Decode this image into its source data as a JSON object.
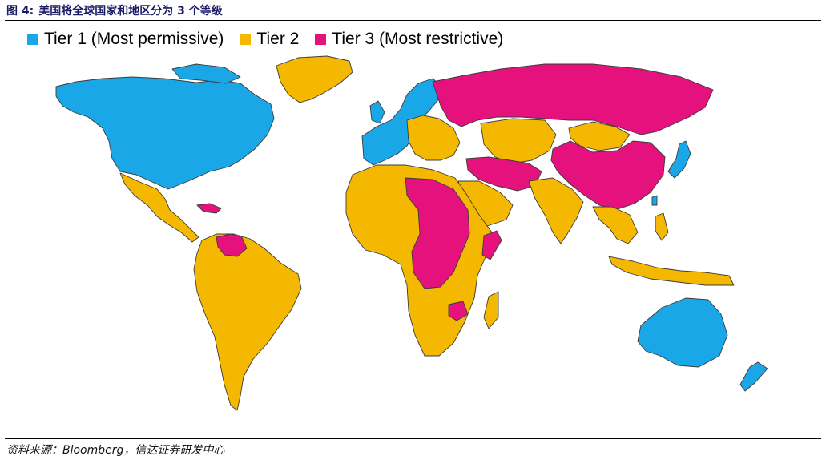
{
  "figure": {
    "number": "图 4:",
    "title": "美国将全球国家和地区分为 3 个等级"
  },
  "legend": [
    {
      "label": "Tier 1 (Most permissive)",
      "color": "#1aa7e8"
    },
    {
      "label": "Tier 2",
      "color": "#f5b800"
    },
    {
      "label": "Tier 3 (Most restrictive)",
      "color": "#e5127d"
    }
  ],
  "colors": {
    "tier1": "#1aa7e8",
    "tier2": "#f5b800",
    "tier3": "#e5127d",
    "border": "#3b3b3b"
  },
  "regions": [
    {
      "name": "North America",
      "tier": "Tier 1"
    },
    {
      "name": "Greenland",
      "tier": "Tier 2"
    },
    {
      "name": "Mexico and Central America",
      "tier": "Tier 2"
    },
    {
      "name": "South America",
      "tier": "Tier 2"
    },
    {
      "name": "Venezuela",
      "tier": "Tier 3"
    },
    {
      "name": "Western Europe",
      "tier": "Tier 1"
    },
    {
      "name": "Eastern Europe",
      "tier": "Tier 2"
    },
    {
      "name": "Russia",
      "tier": "Tier 3"
    },
    {
      "name": "China",
      "tier": "Tier 3"
    },
    {
      "name": "Central Asia",
      "tier": "Tier 2"
    },
    {
      "name": "Mongolia",
      "tier": "Tier 2"
    },
    {
      "name": "Middle East (Iran, Iraq, Syria)",
      "tier": "Tier 3"
    },
    {
      "name": "Arabian Peninsula",
      "tier": "Tier 2"
    },
    {
      "name": "India",
      "tier": "Tier 2"
    },
    {
      "name": "Southeast Asia",
      "tier": "Tier 2"
    },
    {
      "name": "Japan",
      "tier": "Tier 1"
    },
    {
      "name": "South Korea",
      "tier": "Tier 1"
    },
    {
      "name": "North Korea",
      "tier": "Tier 3"
    },
    {
      "name": "Taiwan",
      "tier": "Tier 1"
    },
    {
      "name": "Africa",
      "tier": "Tier 2"
    },
    {
      "name": "Libya, Sudan, Central Africa",
      "tier": "Tier 3"
    },
    {
      "name": "Zimbabwe",
      "tier": "Tier 3"
    },
    {
      "name": "Australia",
      "tier": "Tier 1"
    },
    {
      "name": "New Zealand",
      "tier": "Tier 1"
    },
    {
      "name": "Indonesia",
      "tier": "Tier 2"
    }
  ],
  "source": "资料来源：Bloomberg，信达证券研发中心"
}
